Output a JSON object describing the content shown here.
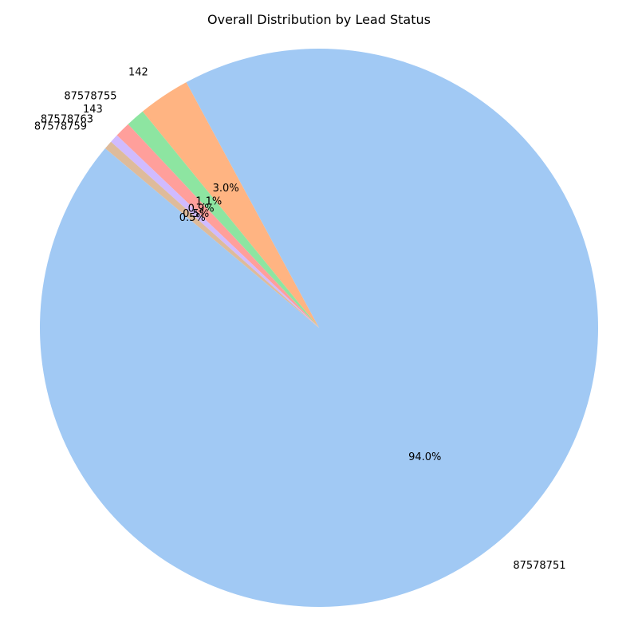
{
  "chart_data": {
    "type": "pie",
    "title": "Overall Distribution by Lead Status",
    "start_angle_deg": 140,
    "direction": "counterclockwise",
    "slices": [
      {
        "label": "87578751",
        "percent": 94.0,
        "pct_label": "94.0%",
        "color": "#a1c9f4"
      },
      {
        "label": "142",
        "percent": 3.0,
        "pct_label": "3.0%",
        "color": "#ffb482"
      },
      {
        "label": "87578755",
        "percent": 1.1,
        "pct_label": "1.1%",
        "color": "#8de5a1"
      },
      {
        "label": "143",
        "percent": 0.9,
        "pct_label": "0.9%",
        "color": "#ff9f9b"
      },
      {
        "label": "87578763",
        "percent": 0.5,
        "pct_label": "0.5%",
        "color": "#d0bbff"
      },
      {
        "label": "87578759",
        "percent": 0.5,
        "pct_label": "0.5%",
        "color": "#debb9b"
      }
    ]
  }
}
